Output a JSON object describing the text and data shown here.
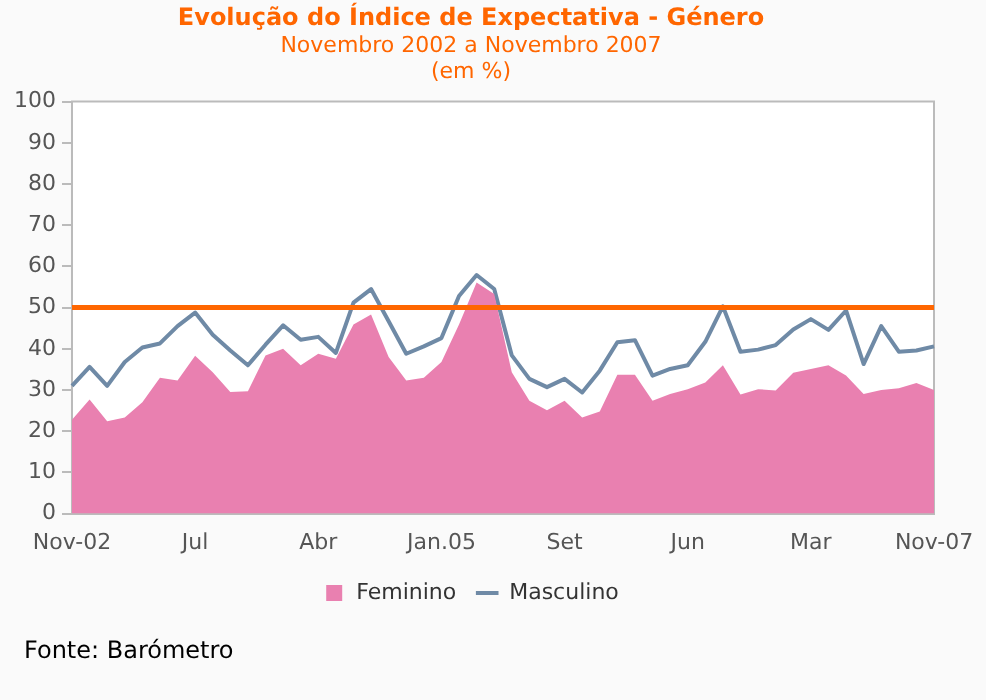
{
  "chart_data": {
    "type": "line",
    "title": "Evolução do Índice de Expectativa - Género",
    "subtitle": "Novembro 2002 a Novembro 2007\n(em %)",
    "categories": [
      "Nov-02",
      null,
      null,
      null,
      null,
      null,
      null,
      "Jul",
      null,
      null,
      null,
      null,
      null,
      null,
      "Abr",
      null,
      null,
      null,
      null,
      null,
      null,
      "Jan.05",
      null,
      null,
      null,
      null,
      null,
      null,
      "Set",
      null,
      null,
      null,
      null,
      null,
      null,
      "Jun",
      null,
      null,
      null,
      null,
      null,
      null,
      "Mar",
      null,
      null,
      null,
      null,
      null,
      null,
      "Nov-07"
    ],
    "series": [
      {
        "name": "Feminino",
        "type": "area",
        "color": "#e980b0",
        "values": [
          22.8,
          27.7,
          22.4,
          23.3,
          27,
          33,
          32.3,
          38.3,
          34.3,
          29.5,
          29.7,
          38.4,
          40,
          36,
          38.8,
          37.6,
          45.9,
          48.3,
          38,
          32.3,
          33,
          36.8,
          45.9,
          56.1,
          53.3,
          34.3,
          27.4,
          25.1,
          27.4,
          23.3,
          24.8,
          33.7,
          33.7,
          27.4,
          29,
          30.2,
          31.8,
          36,
          28.9,
          30.2,
          29.9,
          34.2,
          35.1,
          36,
          33.5,
          29,
          30,
          30.4,
          31.7,
          30
        ]
      },
      {
        "name": "Masculino",
        "type": "line",
        "color": "#6f8aa6",
        "values": [
          31,
          35.6,
          31,
          36.8,
          40.3,
          41.3,
          45.5,
          48.8,
          43.4,
          39.6,
          36,
          41,
          45.7,
          42.2,
          42.9,
          39,
          51.2,
          54.5,
          46.7,
          38.8,
          40.6,
          42.6,
          52.8,
          57.9,
          54.5,
          38.4,
          32.7,
          30.7,
          32.7,
          29.4,
          34.7,
          41.6,
          42.1,
          33.5,
          35.1,
          36,
          41.7,
          50.3,
          39.3,
          39.8,
          40.9,
          44.7,
          47.2,
          44.6,
          49.3,
          36.3,
          45.5,
          39.3,
          39.6,
          40.6
        ]
      }
    ],
    "ylim": [
      0,
      100
    ],
    "yticks": [
      0,
      10,
      20,
      30,
      40,
      50,
      60,
      70,
      80,
      90,
      100
    ],
    "grid": false,
    "legend": "bottom",
    "marker": "none",
    "line_style": "solid",
    "ref_lines": [
      {
        "axis": "y",
        "value": 50,
        "color": "#ff6600"
      }
    ],
    "annotations": [
      "Fonte: Barómetro"
    ]
  }
}
